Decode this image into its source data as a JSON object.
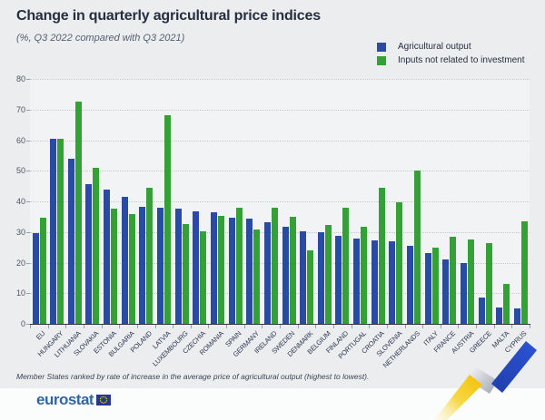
{
  "title": "Change in quarterly agricultural price indices",
  "subtitle": "(%, Q3 2022 compared with Q3 2021)",
  "footnote": "Member States ranked by rate of increase in the average price of agricultural output (highest to lowest).",
  "logo": {
    "text": "eurostat"
  },
  "colors": {
    "output_blue": "#2a4ba4",
    "inputs_green": "#34a136",
    "background": "#ebedee",
    "plot_background": "#f2f3f5"
  },
  "chart_data": {
    "type": "bar",
    "title": "Change in quarterly agricultural price indices",
    "subtitle": "(%, Q3 2022 compared with Q3 2021)",
    "ylabel": "%",
    "ylim": [
      0,
      80
    ],
    "ytick_step": 10,
    "grid": true,
    "legend_position": "top-right",
    "categories": [
      "EU",
      "HUNGARY",
      "LITHUANIA",
      "SLOVAKIA",
      "ESTONIA",
      "BULGARIA",
      "POLAND",
      "LATVIA",
      "LUXEMBOURG",
      "CZECHIA",
      "ROMANIA",
      "SPAIN",
      "GERMANY",
      "IRELAND",
      "SWEDEN",
      "DENMARK",
      "BELGIUM",
      "FINLAND",
      "PORTUGAL",
      "CROATIA",
      "SLOVENIA",
      "NETHERLANDS",
      "ITALY",
      "FRANCE",
      "AUSTRIA",
      "GREECE",
      "MALTA",
      "CYPRUS"
    ],
    "series": [
      {
        "name": "Agricultural output",
        "color": "#2a4ba4",
        "values": [
          29.5,
          60.5,
          54,
          45.5,
          44,
          41.5,
          38.2,
          38,
          37.5,
          36.7,
          36.3,
          34.6,
          34.3,
          33.3,
          31.8,
          30.3,
          29.8,
          28.6,
          28,
          27.2,
          27,
          25.5,
          23,
          21,
          20,
          8.7,
          5.2,
          4.9
        ]
      },
      {
        "name": "Inputs not related to investment",
        "color": "#34a136",
        "values": [
          34.6,
          60.4,
          72.5,
          51,
          37.5,
          36,
          44.4,
          68.2,
          32.7,
          30.3,
          35.3,
          38,
          30.8,
          37.8,
          35.1,
          23.9,
          32.4,
          37.8,
          31.6,
          44.5,
          39.8,
          50.2,
          25,
          28.3,
          27.7,
          26.4,
          13.1,
          33.6
        ]
      }
    ]
  }
}
